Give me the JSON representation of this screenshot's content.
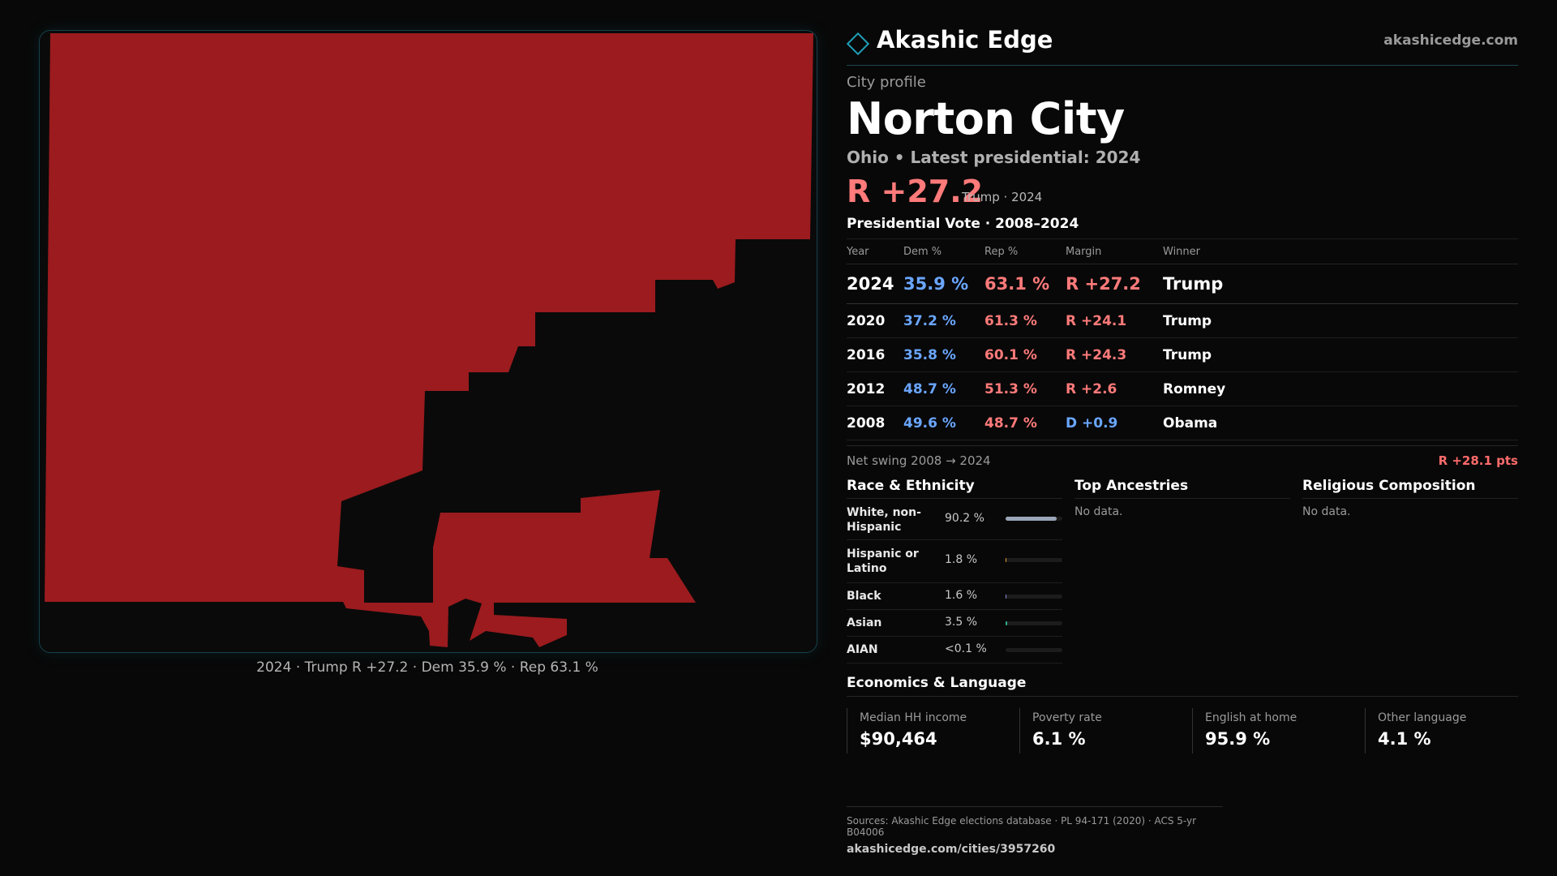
{
  "colors": {
    "rep": "#9b1b1e",
    "dem_text": "#6aa6ff",
    "rep_text": "#ff7a7a",
    "accent": "#1fa0b8"
  },
  "map": {
    "caption": "2024 · Trump R +27.2 · Dem 35.9 % · Rep 63.1 %"
  },
  "brand": {
    "name": "Akashic Edge",
    "url": "akashicedge.com",
    "logo_icon": "diamond-icon"
  },
  "profile": {
    "kicker": "City profile",
    "city": "Norton City",
    "subtitle": "Ohio • Latest presidential: 2024",
    "headline_margin": "R +27.2",
    "headline_note": "Trump · 2024"
  },
  "vote": {
    "title": "Presidential Vote · 2008–2024",
    "headers": {
      "year": "Year",
      "dem": "Dem %",
      "rep": "Rep %",
      "margin": "Margin",
      "winner": "Winner"
    },
    "rows": [
      {
        "year": "2024",
        "dem": "35.9 %",
        "rep": "63.1 %",
        "margin": "R +27.2",
        "winner": "Trump"
      },
      {
        "year": "2020",
        "dem": "37.2 %",
        "rep": "61.3 %",
        "margin": "R +24.1",
        "winner": "Trump"
      },
      {
        "year": "2016",
        "dem": "35.8 %",
        "rep": "60.1 %",
        "margin": "R +24.3",
        "winner": "Trump"
      },
      {
        "year": "2012",
        "dem": "48.7 %",
        "rep": "51.3 %",
        "margin": "R +2.6",
        "winner": "Romney"
      },
      {
        "year": "2008",
        "dem": "49.6 %",
        "rep": "48.7 %",
        "margin": "D +0.9",
        "winner": "Obama"
      }
    ],
    "swing_label": "Net swing 2008 → 2024",
    "swing_value": "R +28.1 pts"
  },
  "race": {
    "title": "Race & Ethnicity",
    "rows": [
      {
        "label": "White, non-Hispanic",
        "value": "90.2 %",
        "fraction": 0.902,
        "color": "#9aa6b8"
      },
      {
        "label": "Hispanic or Latino",
        "value": "1.8 %",
        "fraction": 0.018,
        "color": "#e0a030"
      },
      {
        "label": "Black",
        "value": "1.6 %",
        "fraction": 0.016,
        "color": "#8a8adc"
      },
      {
        "label": "Asian",
        "value": "3.5 %",
        "fraction": 0.035,
        "color": "#30b090"
      },
      {
        "label": "AIAN",
        "value": "<0.1 %",
        "fraction": 0.0,
        "color": "#c07050"
      }
    ]
  },
  "ancestries": {
    "title": "Top Ancestries",
    "empty": "No data."
  },
  "religion": {
    "title": "Religious Composition",
    "empty": "No data."
  },
  "economics": {
    "title": "Economics & Language",
    "cards": [
      {
        "label": "Median HH income",
        "value": "$90,464"
      },
      {
        "label": "Poverty rate",
        "value": "6.1 %"
      },
      {
        "label": "English at home",
        "value": "95.9 %"
      },
      {
        "label": "Other language",
        "value": "4.1 %"
      }
    ]
  },
  "sources": {
    "text": "Sources: Akashic Edge elections database · PL 94-171 (2020) · ACS 5-yr B04006",
    "url": "akashicedge.com/cities/3957260"
  }
}
